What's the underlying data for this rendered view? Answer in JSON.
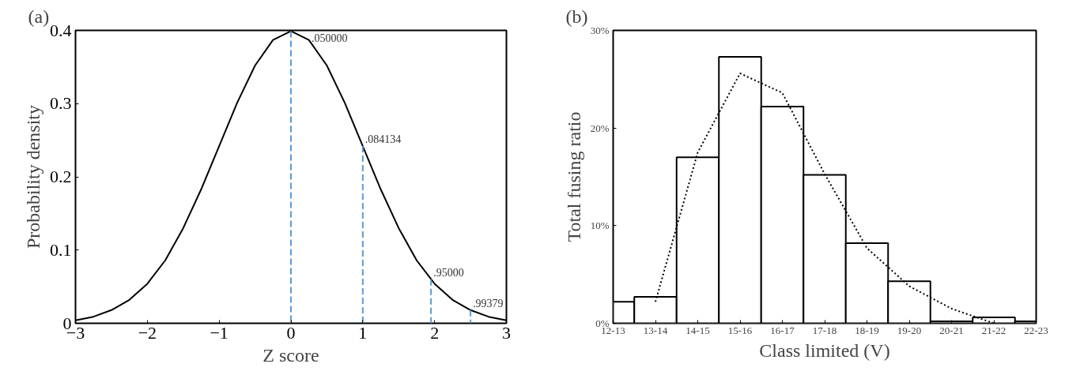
{
  "chart_data": [
    {
      "type": "line",
      "title": "(a)",
      "xlabel": "Z score",
      "ylabel": "Probability density",
      "x": [
        -3,
        -2.75,
        -2.5,
        -2.25,
        -2,
        -1.75,
        -1.5,
        -1.25,
        -1,
        -0.75,
        -0.5,
        -0.25,
        0,
        0.25,
        0.5,
        0.75,
        1,
        1.25,
        1.5,
        1.75,
        2,
        2.25,
        2.5,
        2.75,
        3
      ],
      "series": [
        {
          "color": "#000000",
          "values": [
            0.004,
            0.009,
            0.018,
            0.032,
            0.054,
            0.086,
            0.13,
            0.183,
            0.242,
            0.301,
            0.352,
            0.387,
            0.399,
            0.387,
            0.352,
            0.301,
            0.242,
            0.183,
            0.13,
            0.086,
            0.054,
            0.032,
            0.018,
            0.009,
            0.004
          ]
        },
        {
          "color": "#5b9bd5",
          "line_style": "dashed",
          "x": [
            0,
            0
          ],
          "values": [
            0.399,
            0
          ]
        },
        {
          "color": "#5b9bd5",
          "line_style": "dashed",
          "x": [
            1,
            1
          ],
          "values": [
            0.242,
            0
          ]
        },
        {
          "color": "#5b9bd5",
          "line_style": "dashed",
          "x": [
            1.95,
            1.95
          ],
          "values": [
            0.06,
            0
          ]
        },
        {
          "color": "#5b9bd5",
          "line_style": "dashed",
          "x": [
            2.5,
            2.5
          ],
          "values": [
            0.018,
            0
          ]
        }
      ],
      "xlim": [
        -3,
        3
      ],
      "xticks": [
        -3,
        -2,
        -1,
        0,
        1,
        2,
        3
      ],
      "ylim": [
        0,
        0.4
      ],
      "yticks": [
        0,
        0.1,
        0.2,
        0.3,
        0.4
      ],
      "grid": false,
      "annotations": [
        {
          "text": ".050000",
          "x": 0,
          "y": 0.399
        },
        {
          "text": ".084134",
          "x": 1,
          "y": 0.242
        },
        {
          "text": ".95000",
          "x": 1.95,
          "y": 0.06
        },
        {
          "text": ".99379",
          "x": 2.5,
          "y": 0.018
        }
      ]
    },
    {
      "type": "bar",
      "title": "(b)",
      "xlabel": "Class limited (V)",
      "ylabel": "Total fusing ratio",
      "categories": [
        "12-13",
        "13-14",
        "14-15",
        "15-16",
        "16-17",
        "17-18",
        "18-19",
        "19-20",
        "20-21",
        "21-22",
        "22-23"
      ],
      "series": [
        {
          "color": "#ffffff",
          "values": [
            2.2,
            2.7,
            17.0,
            27.3,
            22.2,
            15.2,
            8.2,
            4.3,
            0.2,
            0.6,
            0.2
          ]
        },
        {
          "type": "line",
          "color": "#000000",
          "line_style": "dotted",
          "values": [
            null,
            2.2,
            17.5,
            25.6,
            23.6,
            15.3,
            7.7,
            3.8,
            1.5,
            0,
            null
          ]
        }
      ],
      "ylim": [
        0,
        30
      ],
      "yticks": [
        {
          "value": 0,
          "label": "0%"
        },
        {
          "value": 10,
          "label": "10%"
        },
        {
          "value": 20,
          "label": "20%"
        },
        {
          "value": 30,
          "label": "30%"
        }
      ],
      "grid": false
    }
  ]
}
